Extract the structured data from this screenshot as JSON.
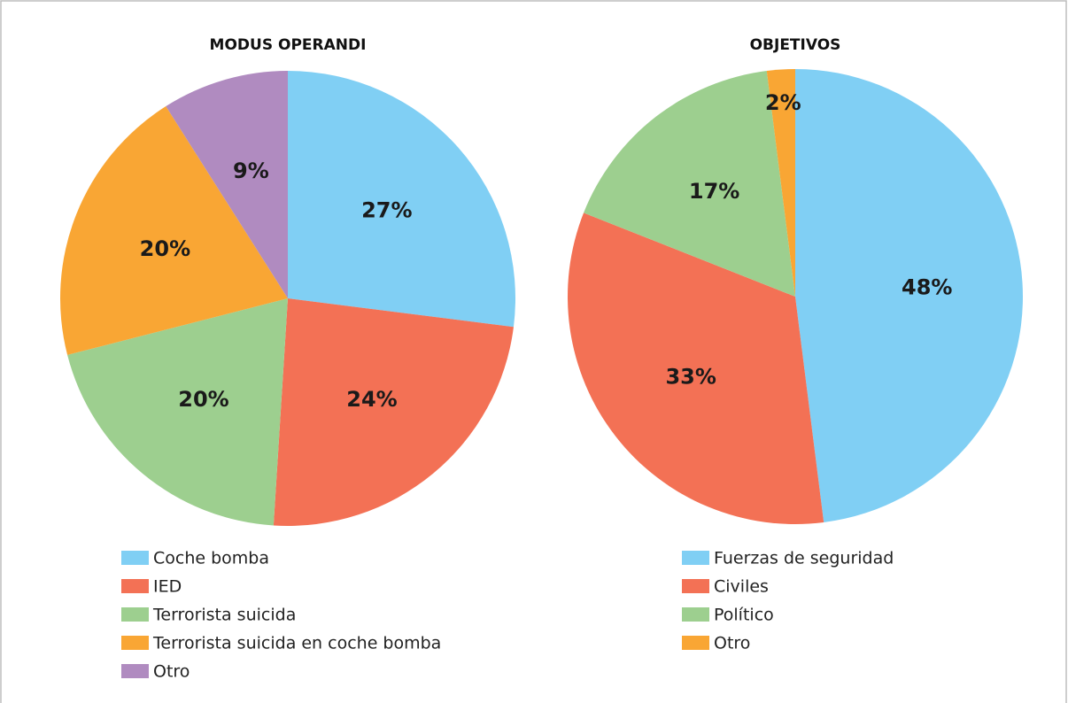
{
  "chart_data": [
    {
      "type": "pie",
      "title": "MODUS OPERANDI",
      "categories": [
        "Coche bomba",
        "IED",
        "Terrorista suicida",
        "Terrorista suicida en coche bomba",
        "Otro"
      ],
      "values": [
        27,
        24,
        20,
        20,
        9
      ],
      "value_labels": [
        "27%",
        "24%",
        "20%",
        "20%",
        "9%"
      ],
      "colors": [
        "#80cff4",
        "#f37155",
        "#9dcf8f",
        "#f9a634",
        "#b08bc0"
      ]
    },
    {
      "type": "pie",
      "title": "OBJETIVOS",
      "categories": [
        "Fuerzas de seguridad",
        "Civiles",
        "Político",
        "Otro"
      ],
      "values": [
        48,
        33,
        17,
        2
      ],
      "value_labels": [
        "48%",
        "33%",
        "17%",
        "2%"
      ],
      "colors": [
        "#80cff4",
        "#f37155",
        "#9dcf8f",
        "#f9a634"
      ]
    }
  ]
}
